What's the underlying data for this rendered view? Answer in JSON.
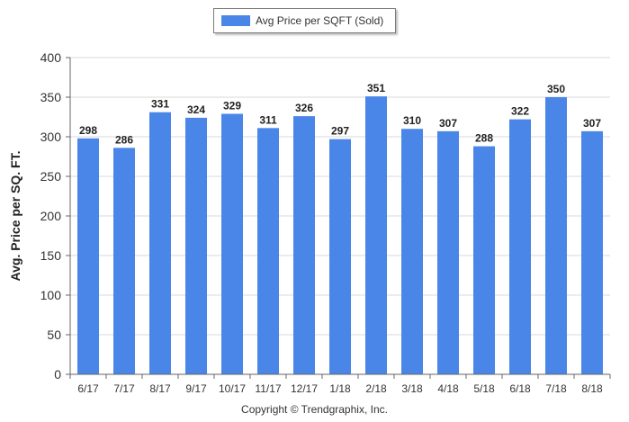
{
  "legend": {
    "label": "Avg Price per SQFT (Sold)"
  },
  "footer": {
    "copyright": "Copyright © Trendgraphix, Inc."
  },
  "chart_data": {
    "type": "bar",
    "title": "",
    "ylabel": "Avg. Price per SQ. FT.",
    "xlabel": "",
    "ylim": [
      0,
      400
    ],
    "yticks": [
      0,
      50,
      100,
      150,
      200,
      250,
      300,
      350,
      400
    ],
    "grid": true,
    "legend_position": "top-center",
    "bar_color": "#4a86e8",
    "categories": [
      "6/17",
      "7/17",
      "8/17",
      "9/17",
      "10/17",
      "11/17",
      "12/17",
      "1/18",
      "2/18",
      "3/18",
      "4/18",
      "5/18",
      "6/18",
      "7/18",
      "8/18"
    ],
    "series": [
      {
        "name": "Avg Price per SQFT (Sold)",
        "values": [
          298,
          286,
          331,
          324,
          329,
          311,
          326,
          297,
          351,
          310,
          307,
          288,
          322,
          350,
          307
        ]
      }
    ]
  }
}
